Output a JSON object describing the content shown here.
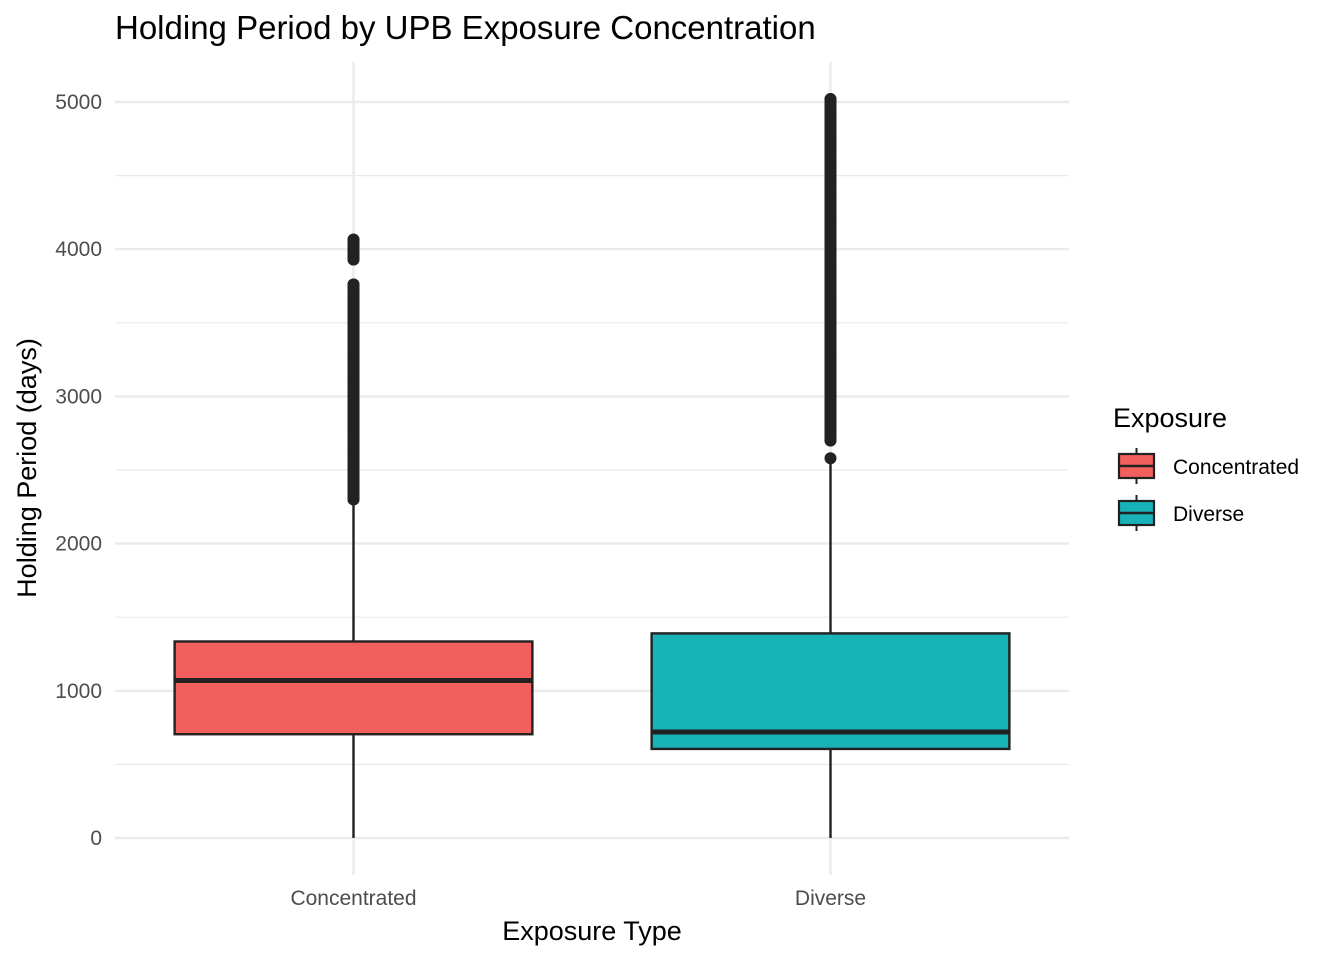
{
  "chart_data": {
    "type": "box",
    "title": "Holding Period by UPB Exposure Concentration",
    "xlabel": "Exposure Type",
    "ylabel": "Holding Period (days)",
    "ylim": [
      -250,
      5270
    ],
    "yticks": [
      0,
      1000,
      2000,
      3000,
      4000,
      5000
    ],
    "grid": true,
    "legend": {
      "title": "Exposure",
      "position": "right",
      "entries": [
        "Concentrated",
        "Diverse"
      ]
    },
    "colors": {
      "Concentrated": "#F35F5C",
      "Diverse": "#18B3B8",
      "outline": "#222222",
      "grid": "#EBEBEB"
    },
    "categories": [
      "Concentrated",
      "Diverse"
    ],
    "boxes": [
      {
        "category": "Concentrated",
        "min": 0,
        "q1": 705,
        "median": 1070,
        "q3": 1335,
        "whisker_high": 2285,
        "outliers": [
          2300,
          2400,
          2500,
          2600,
          2700,
          2800,
          2900,
          3000,
          3100,
          3200,
          3300,
          3400,
          3500,
          3600,
          3700,
          3760,
          3930,
          3980,
          4065
        ]
      },
      {
        "category": "Diverse",
        "min": 0,
        "q1": 605,
        "median": 720,
        "q3": 1390,
        "whisker_high": 2560,
        "outliers": [
          2580,
          2700,
          2800,
          2900,
          3000,
          3100,
          3200,
          3300,
          3400,
          3500,
          3600,
          3700,
          3800,
          3900,
          4000,
          4100,
          4200,
          4300,
          4400,
          4500,
          4600,
          4700,
          4800,
          4900,
          5000,
          5020
        ]
      }
    ]
  }
}
